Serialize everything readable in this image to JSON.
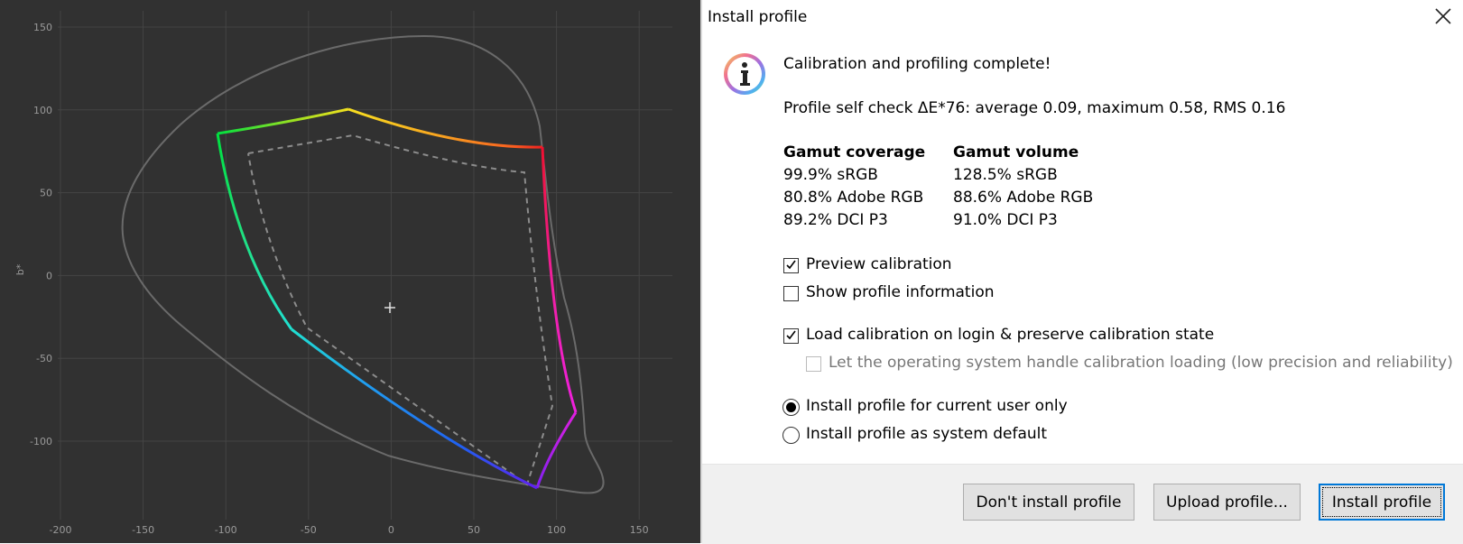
{
  "plot": {
    "x_ticks": [
      "-200",
      "-150",
      "-100",
      "-50",
      "0",
      "50",
      "100",
      "150"
    ],
    "y_ticks": [
      "150",
      "100",
      "50",
      "0",
      "-50",
      "-100"
    ],
    "y_label": "b*",
    "colors": {
      "background": "#313131",
      "grid": "#444444",
      "spectral_locus": "#6a6a6a",
      "reference_gamut": "#8c8c8c",
      "whitepoint": "#e0e0e0"
    }
  },
  "dialog": {
    "title": "Install profile",
    "heading": "Calibration and profiling complete!",
    "self_check": "Profile self check ΔE*76: average 0.09, maximum 0.58, RMS 0.16",
    "coverage": {
      "header": "Gamut coverage",
      "items": [
        "99.9% sRGB",
        "80.8% Adobe RGB",
        "89.2% DCI P3"
      ]
    },
    "volume": {
      "header": "Gamut volume",
      "items": [
        "128.5% sRGB",
        "88.6% Adobe RGB",
        "91.0% DCI P3"
      ]
    },
    "preview_calibration": {
      "label": "Preview calibration",
      "checked": true
    },
    "show_profile_info": {
      "label": "Show profile information",
      "checked": false
    },
    "load_calibration": {
      "label": "Load calibration on login & preserve calibration state",
      "checked": true
    },
    "os_handle": {
      "label": "Let the operating system handle calibration loading (low precision and reliability)",
      "checked": false,
      "disabled": true
    },
    "install_current_user": {
      "label": "Install profile for current user only",
      "selected": true
    },
    "install_system_default": {
      "label": "Install profile as system default",
      "selected": false
    },
    "buttons": {
      "dont_install": "Don't install profile",
      "upload": "Upload profile...",
      "install": "Install profile"
    }
  }
}
